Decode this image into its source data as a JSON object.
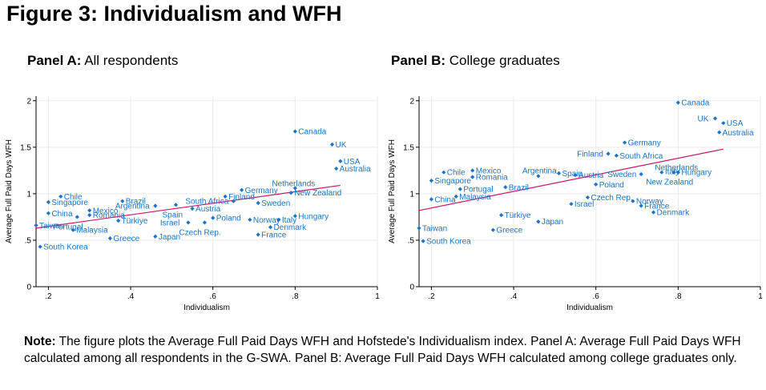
{
  "figure": {
    "title": "Figure 3: Individualism and WFH"
  },
  "panels": [
    {
      "label_bold": "Panel A:",
      "label_rest": "All respondents"
    },
    {
      "label_bold": "Panel B:",
      "label_rest": "College graduates"
    }
  ],
  "note": {
    "bold": "Note:",
    "text": "The figure plots the Average Full Paid Days WFH and Hofstede's Individualism index. Panel A: Average Full Paid Days WFH calculated among all respondents in the G-SWA. Panel B: Average Full Paid Days WFH calculated among college graduates only."
  },
  "colors": {
    "points": "#1a73c9",
    "fit_line": "#c8176a",
    "grid": "#eaeaea"
  },
  "chart_data": [
    {
      "type": "scatter",
      "title": "Panel A: All respondents",
      "xlabel": "Individualism",
      "ylabel": "Average Full Paid Days WFH",
      "xlim": [
        0.17,
        1.0
      ],
      "ylim": [
        0,
        2.05
      ],
      "xticks": [
        0.2,
        0.4,
        0.6,
        0.8,
        1.0
      ],
      "xtick_labels": [
        ".2",
        ".4",
        ".6",
        ".8",
        "1"
      ],
      "yticks": [
        0,
        0.5,
        1,
        1.5,
        2
      ],
      "ytick_labels": [
        "0",
        ".5",
        "1",
        "1.5",
        "2"
      ],
      "grid": true,
      "fit_line": {
        "x": [
          0.17,
          0.91
        ],
        "y": [
          0.63,
          1.09
        ]
      },
      "points": [
        {
          "label": "Canada",
          "x": 0.8,
          "y": 1.67
        },
        {
          "label": "UK",
          "x": 0.89,
          "y": 1.53
        },
        {
          "label": "USA",
          "x": 0.91,
          "y": 1.35
        },
        {
          "label": "Australia",
          "x": 0.9,
          "y": 1.27
        },
        {
          "label": "Netherlands",
          "x": 0.8,
          "y": 1.06,
          "lx": -29,
          "ly": -6
        },
        {
          "label": "New Zealand",
          "x": 0.79,
          "y": 1.01
        },
        {
          "label": "Germany",
          "x": 0.67,
          "y": 1.04
        },
        {
          "label": "Finland",
          "x": 0.63,
          "y": 0.97
        },
        {
          "label": "South Africa",
          "x": 0.65,
          "y": 0.92,
          "lx": -60,
          "ly": 0
        },
        {
          "label": "Sweden",
          "x": 0.71,
          "y": 0.9
        },
        {
          "label": "Hungary",
          "x": 0.8,
          "y": 0.76
        },
        {
          "label": "Italy",
          "x": 0.76,
          "y": 0.72
        },
        {
          "label": "Norway",
          "x": 0.69,
          "y": 0.72
        },
        {
          "label": "Denmark",
          "x": 0.74,
          "y": 0.64
        },
        {
          "label": "France",
          "x": 0.71,
          "y": 0.56
        },
        {
          "label": "Poland",
          "x": 0.6,
          "y": 0.74
        },
        {
          "label": "Austria",
          "x": 0.55,
          "y": 0.84
        },
        {
          "label": "Spain",
          "x": 0.51,
          "y": 0.88,
          "lx": -17,
          "ly": 12
        },
        {
          "label": "Israel",
          "x": 0.54,
          "y": 0.69,
          "lx": -35,
          "ly": 0
        },
        {
          "label": "Czech Rep.",
          "x": 0.58,
          "y": 0.69,
          "lx": -32,
          "ly": 12
        },
        {
          "label": "Japan",
          "x": 0.46,
          "y": 0.54
        },
        {
          "label": "Brazil",
          "x": 0.38,
          "y": 0.92
        },
        {
          "label": "Argentina",
          "x": 0.46,
          "y": 0.87,
          "lx": -50,
          "ly": 0
        },
        {
          "label": "Mexico",
          "x": 0.3,
          "y": 0.82
        },
        {
          "label": "Romania",
          "x": 0.3,
          "y": 0.77
        },
        {
          "label": "Türkiye",
          "x": 0.37,
          "y": 0.71
        },
        {
          "label": "Greece",
          "x": 0.35,
          "y": 0.52
        },
        {
          "label": "Chile",
          "x": 0.23,
          "y": 0.97
        },
        {
          "label": "Singapore",
          "x": 0.2,
          "y": 0.91
        },
        {
          "label": "China",
          "x": 0.2,
          "y": 0.79
        },
        {
          "label": "Portugal",
          "x": 0.27,
          "y": 0.75,
          "lx": -30,
          "ly": 12
        },
        {
          "label": "Taiwan",
          "x": 0.17,
          "y": 0.66
        },
        {
          "label": "Malaysia",
          "x": 0.26,
          "y": 0.61
        },
        {
          "label": "South Korea",
          "x": 0.18,
          "y": 0.43
        }
      ]
    },
    {
      "type": "scatter",
      "title": "Panel B: College graduates",
      "xlabel": "Individualism",
      "ylabel": "Average Full Paid Days WFH",
      "xlim": [
        0.17,
        1.0
      ],
      "ylim": [
        0,
        2.05
      ],
      "xticks": [
        0.2,
        0.4,
        0.6,
        0.8,
        1.0
      ],
      "xtick_labels": [
        ".2",
        ".4",
        ".6",
        ".8",
        "1"
      ],
      "yticks": [
        0,
        0.5,
        1,
        1.5,
        2
      ],
      "ytick_labels": [
        "0",
        ".5",
        "1",
        "1.5",
        "2"
      ],
      "grid": true,
      "fit_line": {
        "x": [
          0.17,
          0.91
        ],
        "y": [
          0.82,
          1.48
        ]
      },
      "points": [
        {
          "label": "Canada",
          "x": 0.8,
          "y": 1.98
        },
        {
          "label": "UK",
          "x": 0.89,
          "y": 1.81,
          "lx": -22,
          "ly": 0
        },
        {
          "label": "USA",
          "x": 0.91,
          "y": 1.76
        },
        {
          "label": "Australia",
          "x": 0.9,
          "y": 1.66
        },
        {
          "label": "Germany",
          "x": 0.67,
          "y": 1.55
        },
        {
          "label": "Finland",
          "x": 0.63,
          "y": 1.43,
          "lx": -39,
          "ly": 0
        },
        {
          "label": "South Africa",
          "x": 0.65,
          "y": 1.41
        },
        {
          "label": "Netherlands",
          "x": 0.8,
          "y": 1.23,
          "lx": -29,
          "ly": -6
        },
        {
          "label": "Hungary",
          "x": 0.8,
          "y": 1.23,
          "lx": 4,
          "ly": 0
        },
        {
          "label": "New Zealand",
          "x": 0.79,
          "y": 1.23,
          "lx": -35,
          "ly": 12
        },
        {
          "label": "Italy",
          "x": 0.76,
          "y": 1.23,
          "lx": 4,
          "ly": -1
        },
        {
          "label": "Sweden",
          "x": 0.71,
          "y": 1.21,
          "lx": -42,
          "ly": 0
        },
        {
          "label": "Austria",
          "x": 0.55,
          "y": 1.2
        },
        {
          "label": "Spain",
          "x": 0.51,
          "y": 1.22
        },
        {
          "label": "Argentina",
          "x": 0.46,
          "y": 1.19,
          "lx": -20,
          "ly": -7
        },
        {
          "label": "Brazil",
          "x": 0.38,
          "y": 1.07
        },
        {
          "label": "Poland",
          "x": 0.6,
          "y": 1.1
        },
        {
          "label": "Czech Rep.",
          "x": 0.58,
          "y": 0.96
        },
        {
          "label": "Norway",
          "x": 0.69,
          "y": 0.92
        },
        {
          "label": "Israel",
          "x": 0.54,
          "y": 0.89
        },
        {
          "label": "France",
          "x": 0.71,
          "y": 0.87
        },
        {
          "label": "Denmark",
          "x": 0.74,
          "y": 0.8
        },
        {
          "label": "Japan",
          "x": 0.46,
          "y": 0.7
        },
        {
          "label": "Türkiye",
          "x": 0.37,
          "y": 0.77
        },
        {
          "label": "Greece",
          "x": 0.35,
          "y": 0.61
        },
        {
          "label": "Chile",
          "x": 0.23,
          "y": 1.23
        },
        {
          "label": "Singapore",
          "x": 0.2,
          "y": 1.14
        },
        {
          "label": "Mexico",
          "x": 0.3,
          "y": 1.25
        },
        {
          "label": "Romania",
          "x": 0.3,
          "y": 1.18
        },
        {
          "label": "Portugal",
          "x": 0.27,
          "y": 1.05
        },
        {
          "label": "Malaysia",
          "x": 0.26,
          "y": 0.97
        },
        {
          "label": "China",
          "x": 0.2,
          "y": 0.94
        },
        {
          "label": "Taiwan",
          "x": 0.17,
          "y": 0.63
        },
        {
          "label": "South Korea",
          "x": 0.18,
          "y": 0.49
        }
      ]
    }
  ]
}
